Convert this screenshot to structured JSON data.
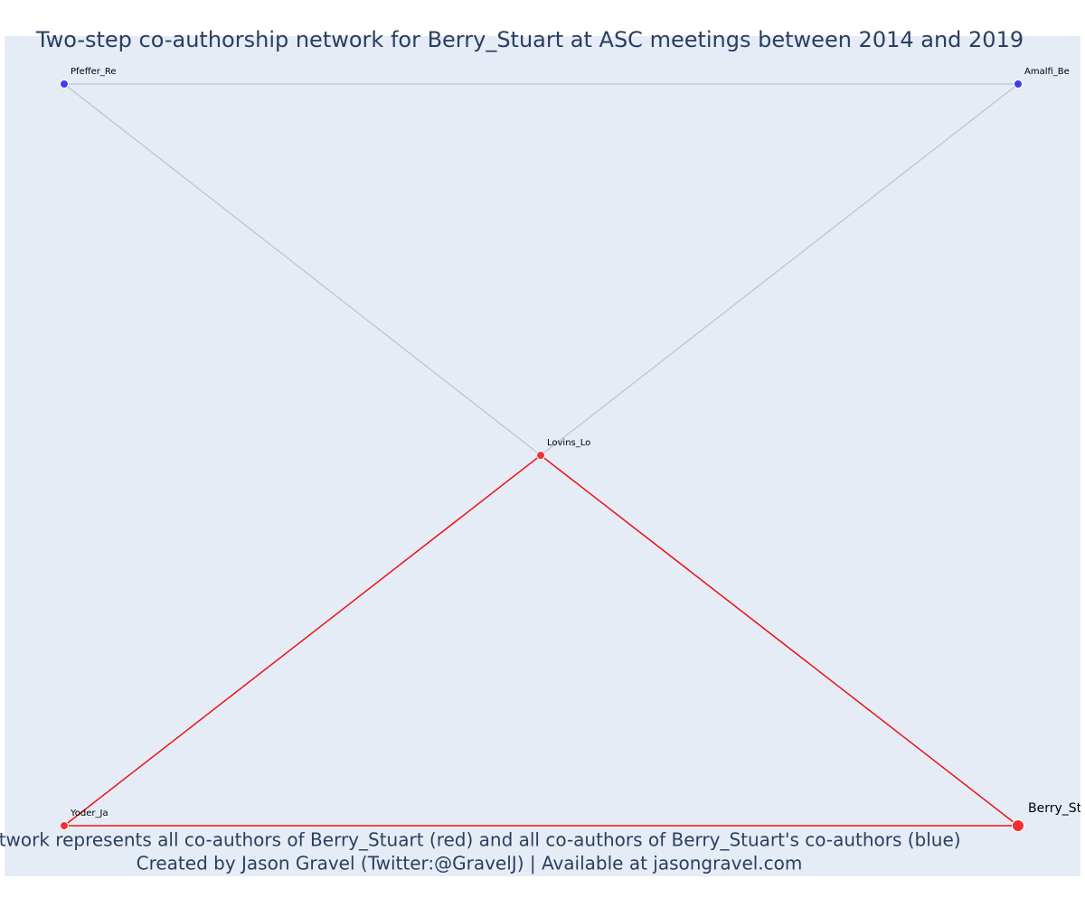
{
  "title": "Two-step co-authorship network for Berry_Stuart at ASC meetings between 2014 and 2019",
  "nodes": [
    {
      "label": "Pfeffer_Re",
      "color": "blue"
    },
    {
      "label": "Amalfi_Be",
      "color": "blue"
    },
    {
      "label": "Lovins_Lo",
      "color": "red"
    },
    {
      "label": "Yoder_Ja",
      "color": "red"
    },
    {
      "label": "Berry_St",
      "color": "red"
    }
  ],
  "edges": [
    {
      "source": 0,
      "target": 1,
      "color": "gray"
    },
    {
      "source": 0,
      "target": 2,
      "color": "gray"
    },
    {
      "source": 1,
      "target": 2,
      "color": "gray"
    },
    {
      "source": 2,
      "target": 3,
      "color": "red"
    },
    {
      "source": 2,
      "target": 4,
      "color": "red"
    },
    {
      "source": 3,
      "target": 4,
      "color": "red"
    }
  ],
  "caption": [
    "Network represents all co-authors of Berry_Stuart (red) and all co-authors of Berry_Stuart's co-authors (blue)",
    "Created by Jason Gravel (Twitter:@GravelJ) | Available at jasongravel.com"
  ]
}
